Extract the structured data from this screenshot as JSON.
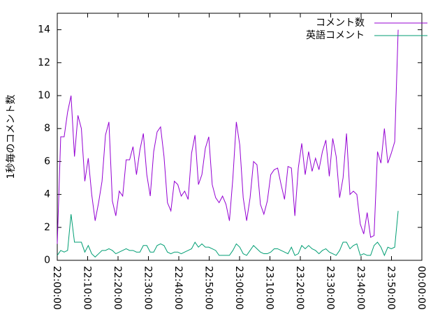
{
  "chart_data": {
    "type": "line",
    "ylabel": "1秒毎のコメント数",
    "xlim": [
      "22:00:00",
      "00:00:00"
    ],
    "xticks": [
      "22:00:00",
      "22:10:00",
      "22:20:00",
      "22:30:00",
      "22:40:00",
      "22:50:00",
      "23:00:00",
      "23:10:00",
      "23:20:00",
      "23:30:00",
      "23:40:00",
      "23:50:00",
      "00:00:00"
    ],
    "ylim": [
      0,
      15
    ],
    "yticks": [
      0,
      2,
      4,
      6,
      8,
      10,
      12,
      14
    ],
    "legend": "top-right",
    "x": [
      "22:00:00",
      "22:01:08",
      "22:02:16",
      "22:03:24",
      "22:04:32",
      "22:05:40",
      "22:06:48",
      "22:07:56",
      "22:09:04",
      "22:10:12",
      "22:11:20",
      "22:12:28",
      "22:13:36",
      "22:14:44",
      "22:15:52",
      "22:17:00",
      "22:18:08",
      "22:19:16",
      "22:20:24",
      "22:21:32",
      "22:22:40",
      "22:23:48",
      "22:24:56",
      "22:26:04",
      "22:27:12",
      "22:28:20",
      "22:29:28",
      "22:30:36",
      "22:31:44",
      "22:32:52",
      "22:34:00",
      "22:35:08",
      "22:36:16",
      "22:37:24",
      "22:38:32",
      "22:39:40",
      "22:40:48",
      "22:41:56",
      "22:43:04",
      "22:44:12",
      "22:45:20",
      "22:46:28",
      "22:47:36",
      "22:48:44",
      "22:49:52",
      "22:51:00",
      "22:52:08",
      "22:53:16",
      "22:54:24",
      "22:55:32",
      "22:56:40",
      "22:57:48",
      "22:58:56",
      "23:00:04",
      "23:01:12",
      "23:02:20",
      "23:03:28",
      "23:04:36",
      "23:05:44",
      "23:06:52",
      "23:08:00",
      "23:09:08",
      "23:10:16",
      "23:11:24",
      "23:12:32",
      "23:13:40",
      "23:14:48",
      "23:15:56",
      "23:17:04",
      "23:18:12",
      "23:19:20",
      "23:20:28",
      "23:21:36",
      "23:22:44",
      "23:23:52",
      "23:25:00",
      "23:26:08",
      "23:27:16",
      "23:28:24",
      "23:29:32",
      "23:30:40",
      "23:31:48",
      "23:32:56",
      "23:34:04",
      "23:35:12",
      "23:36:20",
      "23:37:28",
      "23:38:36",
      "23:39:44",
      "23:40:52",
      "23:42:00",
      "23:43:08",
      "23:44:16",
      "23:45:24",
      "23:46:32",
      "23:47:40",
      "23:48:48",
      "23:49:56",
      "23:51:04",
      "23:52:12"
    ],
    "series": [
      {
        "name": "コメント数",
        "color": "#9400d3",
        "values": [
          1,
          7.5,
          7.5,
          9,
          10,
          6.3,
          8.8,
          8,
          4.8,
          6.2,
          4,
          2.4,
          3.5,
          4.8,
          7.6,
          8.4,
          3.6,
          2.7,
          4.2,
          3.9,
          6.1,
          6.1,
          6.9,
          5.2,
          6.7,
          7.7,
          5.2,
          3.9,
          6.6,
          7.8,
          8.1,
          6.3,
          3.5,
          3,
          4.8,
          4.6,
          3.9,
          4.2,
          3.7,
          6.5,
          7.6,
          4.6,
          5.2,
          6.8,
          7.5,
          4.6,
          3.8,
          3.5,
          3.9,
          3.4,
          2.4,
          5,
          8.4,
          7,
          3.8,
          2.4,
          3.8,
          6,
          5.8,
          3.4,
          2.8,
          3.6,
          5.2,
          5.5,
          5.6,
          4.6,
          3.7,
          5.7,
          5.6,
          2.7,
          5.6,
          7.1,
          5.2,
          6.6,
          5.4,
          6.2,
          5.5,
          6.6,
          7.3,
          5.1,
          7.4,
          6.3,
          3.8,
          5,
          7.7,
          4,
          4.2,
          4,
          2.2,
          1.6,
          2.9,
          1.4,
          1.5,
          6.6,
          5.9,
          8,
          5.9,
          6.5,
          7.2,
          14
        ]
      },
      {
        "name": "英語コメント",
        "color": "#009e73",
        "values": [
          0.3,
          0.6,
          0.5,
          0.6,
          2.8,
          1.1,
          1.1,
          1.1,
          0.5,
          0.9,
          0.4,
          0.2,
          0.4,
          0.6,
          0.6,
          0.7,
          0.6,
          0.4,
          0.5,
          0.6,
          0.7,
          0.6,
          0.6,
          0.5,
          0.5,
          0.9,
          0.9,
          0.5,
          0.5,
          0.9,
          1,
          0.9,
          0.5,
          0.4,
          0.5,
          0.5,
          0.4,
          0.5,
          0.6,
          0.7,
          1.1,
          0.8,
          1,
          0.8,
          0.8,
          0.7,
          0.6,
          0.3,
          0.3,
          0.3,
          0.3,
          0.6,
          1,
          0.8,
          0.4,
          0.3,
          0.6,
          0.9,
          0.7,
          0.5,
          0.4,
          0.4,
          0.5,
          0.7,
          0.7,
          0.6,
          0.5,
          0.4,
          0.8,
          0.3,
          0.4,
          0.9,
          0.7,
          0.9,
          0.7,
          0.6,
          0.4,
          0.6,
          0.7,
          0.5,
          0.4,
          0.3,
          0.6,
          1.1,
          1.1,
          0.7,
          0.9,
          1,
          0.3,
          0.4,
          0.3,
          0.3,
          0.9,
          1.1,
          0.8,
          0.3,
          0.8,
          0.7,
          0.8,
          3
        ]
      }
    ]
  }
}
